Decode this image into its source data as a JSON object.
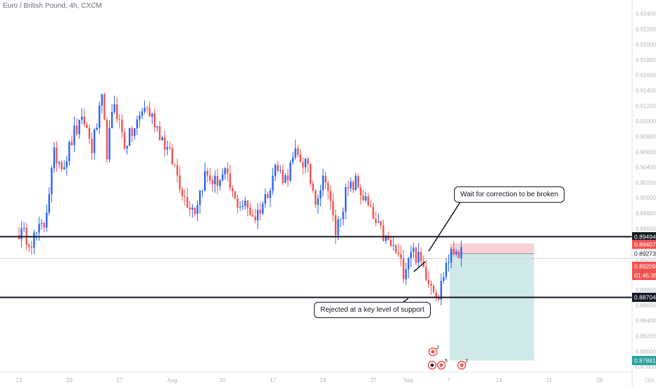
{
  "header": {
    "title": "Euro / British Pound, 4h, CXCM"
  },
  "colors": {
    "up": "#2962ff",
    "down": "#ef5350",
    "level_line": "#131722",
    "stop_zone": "#f9d3d3",
    "target_zone": "#cfe9e9",
    "target_badge": "#22a29a",
    "stop_badge": "#ef5350",
    "entry_badge": "#ef5350"
  },
  "annotations": {
    "correction_note": "Wait for correction to be broken",
    "support_note": "Rejected at a key level of support"
  },
  "price_badges": {
    "resistance": "0.89494",
    "stop": "0.89407",
    "entry": "0.89273",
    "last": "0.89209",
    "countdown": "01:45:35",
    "support": "0.88704",
    "target": "0.87881"
  },
  "events": [
    {
      "icon": "flag-event-icon",
      "count": "2"
    },
    {
      "icon": "flag-event-icon",
      "count": "5"
    },
    {
      "icon": "flag-event-icon",
      "count": "2"
    }
  ],
  "chart_data": {
    "type": "candlestick",
    "title": "Euro / British Pound, 4h, CXCM",
    "xlabel": "",
    "ylabel": "",
    "ylim": [
      0.8782,
      0.9245
    ],
    "y_ticks": [
      "0.92400",
      "0.92200",
      "0.92000",
      "0.91800",
      "0.91600",
      "0.91400",
      "0.91200",
      "0.91000",
      "0.90800",
      "0.90600",
      "0.90400",
      "0.90200",
      "0.90000",
      "0.89800",
      "0.89600",
      "0.89400",
      "0.89200",
      "0.89000",
      "0.88800",
      "0.88600",
      "0.88400",
      "0.88200",
      "0.88000",
      "0.87800"
    ],
    "y_tick_values": [
      0.924,
      0.922,
      0.92,
      0.918,
      0.916,
      0.914,
      0.912,
      0.91,
      0.908,
      0.906,
      0.904,
      0.902,
      0.9,
      0.898,
      0.896,
      0.894,
      0.892,
      0.89,
      0.888,
      0.886,
      0.884,
      0.882,
      0.88,
      0.878
    ],
    "x_ticks": [
      "13",
      "20",
      "27",
      "Aug",
      "10",
      "17",
      "24",
      "27",
      "Sep",
      "7",
      "14",
      "21",
      "28",
      "Oct"
    ],
    "x_tick_index": [
      0,
      20,
      40,
      61,
      81,
      101,
      121,
      141,
      155,
      171,
      191,
      211,
      231,
      251
    ],
    "grid": false,
    "levels": {
      "resistance": 0.89494,
      "support": 0.88704
    },
    "position": {
      "side": "short",
      "entry": 0.89273,
      "stop": 0.89407,
      "target": 0.87881,
      "start_index": 172,
      "end_index": 205
    },
    "last_price": 0.89209,
    "anchors": [
      [
        0,
        0.8955
      ],
      [
        5,
        0.8945
      ],
      [
        10,
        0.8965
      ],
      [
        14,
        0.9055
      ],
      [
        18,
        0.9045
      ],
      [
        22,
        0.9085
      ],
      [
        26,
        0.91
      ],
      [
        29,
        0.9065
      ],
      [
        33,
        0.9125
      ],
      [
        35,
        0.906
      ],
      [
        38,
        0.9125
      ],
      [
        42,
        0.907
      ],
      [
        46,
        0.909
      ],
      [
        50,
        0.912
      ],
      [
        54,
        0.91
      ],
      [
        58,
        0.907
      ],
      [
        62,
        0.904
      ],
      [
        66,
        0.9
      ],
      [
        70,
        0.8985
      ],
      [
        74,
        0.903
      ],
      [
        78,
        0.902
      ],
      [
        82,
        0.903
      ],
      [
        86,
        0.8995
      ],
      [
        90,
        0.899
      ],
      [
        94,
        0.8975
      ],
      [
        98,
        0.9
      ],
      [
        102,
        0.904
      ],
      [
        106,
        0.9025
      ],
      [
        110,
        0.9055
      ],
      [
        114,
        0.9045
      ],
      [
        118,
        0.9
      ],
      [
        122,
        0.903
      ],
      [
        124,
        0.899
      ],
      [
        126,
        0.8955
      ],
      [
        130,
        0.9005
      ],
      [
        134,
        0.902
      ],
      [
        138,
        0.8995
      ],
      [
        142,
        0.8965
      ],
      [
        146,
        0.8945
      ],
      [
        150,
        0.893
      ],
      [
        153,
        0.8905
      ],
      [
        156,
        0.8935
      ],
      [
        160,
        0.8915
      ],
      [
        164,
        0.889
      ],
      [
        167,
        0.8873
      ],
      [
        170,
        0.8915
      ],
      [
        174,
        0.8935
      ],
      [
        176,
        0.8925
      ]
    ]
  }
}
